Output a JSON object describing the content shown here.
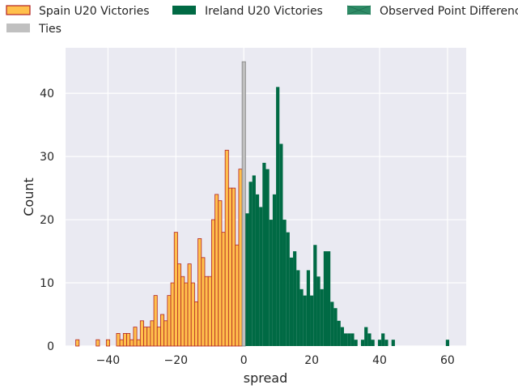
{
  "chart_data": {
    "type": "bar",
    "title": "",
    "xlabel": "spread",
    "ylabel": "Count",
    "xlim": [
      -52.5,
      65.5
    ],
    "ylim": [
      0,
      47.2
    ],
    "x_ticks": [
      -40,
      -20,
      0,
      20,
      40,
      60
    ],
    "y_ticks": [
      0,
      10,
      20,
      30,
      40
    ],
    "grid": true,
    "legend_position": "top",
    "colors": {
      "plot_background": "#eaeaf2",
      "grid": "#ffffff",
      "spain_fill": "#ffc04c",
      "spain_edge": "#b22222",
      "ireland_fill": "#006a44",
      "ties_fill": "#c0c0c0",
      "ties_edge": "#808080",
      "observed_fill": "#2e8b66"
    },
    "legend": [
      {
        "key": "spain",
        "label": "Spain U20 Victories"
      },
      {
        "key": "ireland",
        "label": "Ireland U20 Victories"
      },
      {
        "key": "observed",
        "label": "Observed Point Difference"
      },
      {
        "key": "ties",
        "label": "Ties"
      }
    ],
    "series": [
      {
        "key": "spain",
        "spread": [
          -49,
          -43,
          -40,
          -37,
          -36,
          -35,
          -34,
          -33,
          -32,
          -31,
          -30,
          -29,
          -28,
          -27,
          -26,
          -25,
          -24,
          -23,
          -22,
          -21,
          -20,
          -19,
          -18,
          -17,
          -16,
          -15,
          -14,
          -13,
          -12,
          -11,
          -10,
          -9,
          -8,
          -7,
          -6,
          -5,
          -4,
          -3,
          -2,
          -1
        ],
        "count": [
          1,
          1,
          1,
          2,
          1,
          2,
          2,
          1,
          3,
          1,
          4,
          3,
          3,
          4,
          8,
          3,
          5,
          4,
          8,
          10,
          18,
          13,
          11,
          10,
          13,
          10,
          7,
          17,
          14,
          11,
          11,
          20,
          24,
          23,
          18,
          31,
          25,
          25,
          16,
          28
        ]
      },
      {
        "key": "ties",
        "spread": [
          0
        ],
        "count": [
          45
        ]
      },
      {
        "key": "ireland",
        "spread": [
          1,
          2,
          3,
          4,
          5,
          6,
          7,
          8,
          9,
          10,
          11,
          12,
          13,
          14,
          15,
          16,
          17,
          18,
          19,
          20,
          21,
          22,
          23,
          24,
          25,
          26,
          27,
          28,
          29,
          30,
          31,
          32,
          33,
          35,
          36,
          37,
          38,
          40,
          41,
          42,
          44,
          60
        ],
        "count": [
          21,
          26,
          27,
          24,
          22,
          29,
          28,
          20,
          24,
          41,
          32,
          20,
          18,
          14,
          15,
          12,
          9,
          8,
          12,
          8,
          16,
          11,
          9,
          15,
          15,
          7,
          6,
          4,
          3,
          2,
          2,
          2,
          1,
          1,
          3,
          2,
          1,
          1,
          2,
          1,
          1,
          1
        ]
      }
    ]
  }
}
